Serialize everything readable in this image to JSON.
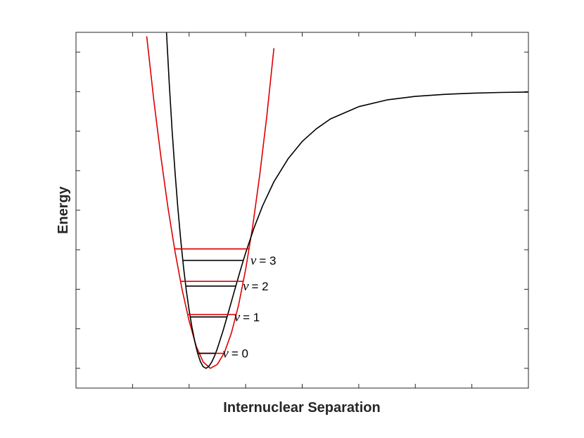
{
  "chart_data": {
    "type": "line",
    "title": "",
    "xlabel": "Internuclear Separation",
    "ylabel": "Energy",
    "xlim": [
      0,
      16
    ],
    "ylim": [
      -0.5,
      8.5
    ],
    "x_ticks": [
      0,
      2,
      4,
      6,
      8,
      10,
      12,
      14,
      16
    ],
    "y_ticks": [
      0,
      1,
      2,
      3,
      4,
      5,
      6,
      7,
      8
    ],
    "tick_labels_visible": false,
    "grid": false,
    "legend": "none",
    "series": [
      {
        "color": "#000000",
        "x": [
          3.2,
          3.3,
          3.4,
          3.5,
          3.6,
          3.7,
          3.8,
          3.9,
          4.0,
          4.1,
          4.2,
          4.3,
          4.4,
          4.5,
          4.6,
          4.7,
          4.8,
          4.9,
          5.0,
          5.2,
          5.4,
          5.6,
          5.8,
          6.0,
          6.3,
          6.6,
          7.0,
          7.5,
          8.0,
          8.5,
          9.0,
          10.0,
          11.0,
          12.0,
          13.0,
          14.0,
          15.0,
          16.0
        ],
        "y": [
          8.51,
          7.19,
          6.02,
          4.98,
          4.07,
          3.28,
          2.58,
          1.98,
          1.47,
          1.04,
          0.68,
          0.39,
          0.17,
          0.04,
          0.0,
          0.05,
          0.16,
          0.31,
          0.5,
          0.95,
          1.44,
          1.95,
          2.45,
          2.92,
          3.56,
          4.11,
          4.72,
          5.3,
          5.74,
          6.06,
          6.31,
          6.62,
          6.79,
          6.88,
          6.93,
          6.96,
          6.98,
          6.99
        ]
      },
      {
        "color": "#dd0000",
        "x": [
          2.5,
          2.75,
          3.0,
          3.25,
          3.5,
          3.75,
          4.0,
          4.25,
          4.5,
          4.75,
          5.0,
          5.25,
          5.5,
          5.75,
          6.0,
          6.25,
          6.5,
          6.75,
          7.0
        ],
        "y": [
          8.4,
          6.8,
          5.36,
          4.08,
          2.96,
          2.0,
          1.2,
          0.56,
          0.16,
          0.0,
          0.1,
          0.4,
          0.9,
          1.6,
          2.5,
          3.6,
          4.9,
          6.4,
          8.1
        ]
      }
    ],
    "levels": [
      {
        "label": "= 0",
        "harmonic_energy": 0.38,
        "anharmonic_energy": 0.38
      },
      {
        "label": "= 1",
        "harmonic_energy": 1.36,
        "anharmonic_energy": 1.3
      },
      {
        "label": "= 2",
        "harmonic_energy": 2.2,
        "anharmonic_energy": 2.08
      },
      {
        "label": "= 3",
        "harmonic_energy": 3.02,
        "anharmonic_energy": 2.73
      }
    ],
    "level_symbol": "ν",
    "colors": {
      "anharmonic": "#000000",
      "harmonic": "#dd0000",
      "axes": "#262626"
    }
  }
}
